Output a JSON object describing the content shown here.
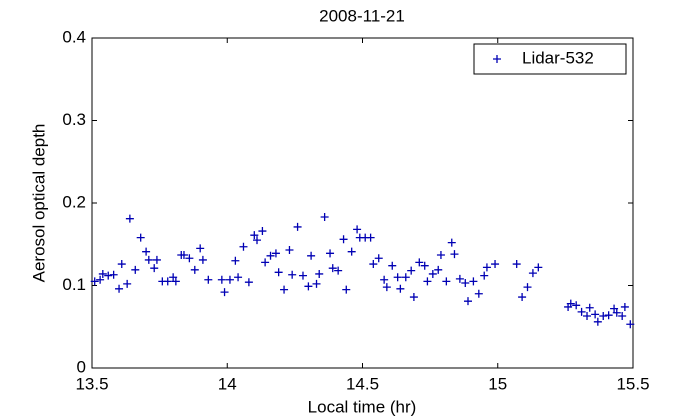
{
  "chart_data": {
    "type": "scatter",
    "title": "2008-11-21",
    "x_label": "Local time (hr)",
    "y_label": "Aerosol optical depth",
    "xlim": [
      13.5,
      15.5
    ],
    "xticks": [
      13.5,
      14,
      14.5,
      15,
      15.5
    ],
    "ylim": [
      0,
      0.4
    ],
    "yticks": [
      0,
      0.1,
      0.2,
      0.3,
      0.4
    ],
    "grid": false,
    "legend": "upper right",
    "marker": "+",
    "series": [
      {
        "name": "Lidar-532",
        "color": "#0000b4",
        "x": [
          13.51,
          13.53,
          13.54,
          13.56,
          13.58,
          13.6,
          13.61,
          13.63,
          13.64,
          13.66,
          13.68,
          13.7,
          13.71,
          13.73,
          13.74,
          13.76,
          13.78,
          13.8,
          13.81,
          13.83,
          13.84,
          13.86,
          13.88,
          13.9,
          13.91,
          13.93,
          13.98,
          13.99,
          14.01,
          14.03,
          14.04,
          14.06,
          14.08,
          14.1,
          14.11,
          14.13,
          14.14,
          14.16,
          14.18,
          14.19,
          14.21,
          14.23,
          14.24,
          14.26,
          14.28,
          14.3,
          14.31,
          14.33,
          14.34,
          14.36,
          14.38,
          14.39,
          14.41,
          14.43,
          14.44,
          14.46,
          14.48,
          14.49,
          14.51,
          14.53,
          14.54,
          14.56,
          14.58,
          14.59,
          14.61,
          14.63,
          14.64,
          14.66,
          14.68,
          14.69,
          14.71,
          14.73,
          14.74,
          14.76,
          14.78,
          14.79,
          14.81,
          14.83,
          14.84,
          14.86,
          14.88,
          14.89,
          14.91,
          14.93,
          14.95,
          14.96,
          14.99,
          15.07,
          15.09,
          15.11,
          15.13,
          15.15,
          15.26,
          15.27,
          15.29,
          15.31,
          15.33,
          15.34,
          15.36,
          15.37,
          15.39,
          15.41,
          15.43,
          15.44,
          15.46,
          15.47,
          15.49
        ],
        "values": [
          0.105,
          0.107,
          0.114,
          0.112,
          0.113,
          0.096,
          0.126,
          0.102,
          0.181,
          0.119,
          0.158,
          0.141,
          0.131,
          0.121,
          0.131,
          0.105,
          0.105,
          0.11,
          0.105,
          0.137,
          0.137,
          0.133,
          0.119,
          0.145,
          0.131,
          0.107,
          0.107,
          0.092,
          0.107,
          0.13,
          0.11,
          0.147,
          0.104,
          0.161,
          0.155,
          0.166,
          0.128,
          0.136,
          0.139,
          0.116,
          0.095,
          0.143,
          0.113,
          0.171,
          0.112,
          0.099,
          0.136,
          0.102,
          0.114,
          0.183,
          0.139,
          0.121,
          0.118,
          0.156,
          0.095,
          0.141,
          0.168,
          0.158,
          0.158,
          0.158,
          0.126,
          0.133,
          0.107,
          0.098,
          0.124,
          0.11,
          0.096,
          0.11,
          0.118,
          0.086,
          0.128,
          0.124,
          0.105,
          0.114,
          0.119,
          0.137,
          0.105,
          0.152,
          0.138,
          0.108,
          0.103,
          0.081,
          0.105,
          0.09,
          0.112,
          0.122,
          0.126,
          0.126,
          0.086,
          0.098,
          0.115,
          0.122,
          0.074,
          0.078,
          0.076,
          0.068,
          0.063,
          0.073,
          0.065,
          0.056,
          0.063,
          0.064,
          0.072,
          0.067,
          0.063,
          0.074,
          0.053
        ]
      }
    ]
  }
}
